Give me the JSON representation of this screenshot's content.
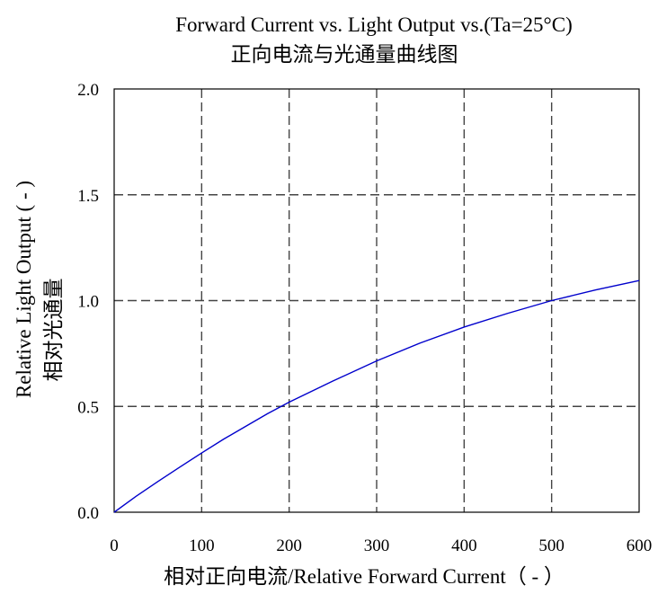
{
  "chart_data": {
    "type": "line",
    "title": "Forward Current vs. Light Output vs.(Ta=25°C)",
    "subtitle": "正向电流与光通量曲线图",
    "xlabel": "相对正向电流/Relative Forward Current（ - ）",
    "ylabel": "Relative Light Output ( - )",
    "ylabel_cn": "相对光通量",
    "xlim": [
      0,
      600
    ],
    "ylim": [
      0,
      2.0
    ],
    "x_ticks": [
      0,
      100,
      200,
      300,
      400,
      500,
      600
    ],
    "x_tick_labels": [
      "0",
      "100",
      "200",
      "300",
      "400",
      "500",
      "600"
    ],
    "y_ticks": [
      0,
      0.5,
      1.0,
      1.5,
      2.0
    ],
    "y_tick_labels": [
      "0.0",
      "0.5",
      "1.0",
      "1.5",
      "2.0"
    ],
    "grid": true,
    "grid_style": "dashed",
    "series": [
      {
        "color": "#0000cc",
        "x": [
          0,
          25,
          50,
          75,
          100,
          125,
          150,
          175,
          200,
          250,
          300,
          350,
          400,
          450,
          500,
          550,
          600
        ],
        "y": [
          0,
          0.075,
          0.145,
          0.213,
          0.28,
          0.345,
          0.405,
          0.465,
          0.52,
          0.62,
          0.715,
          0.8,
          0.875,
          0.94,
          1.0,
          1.05,
          1.095
        ]
      }
    ]
  }
}
